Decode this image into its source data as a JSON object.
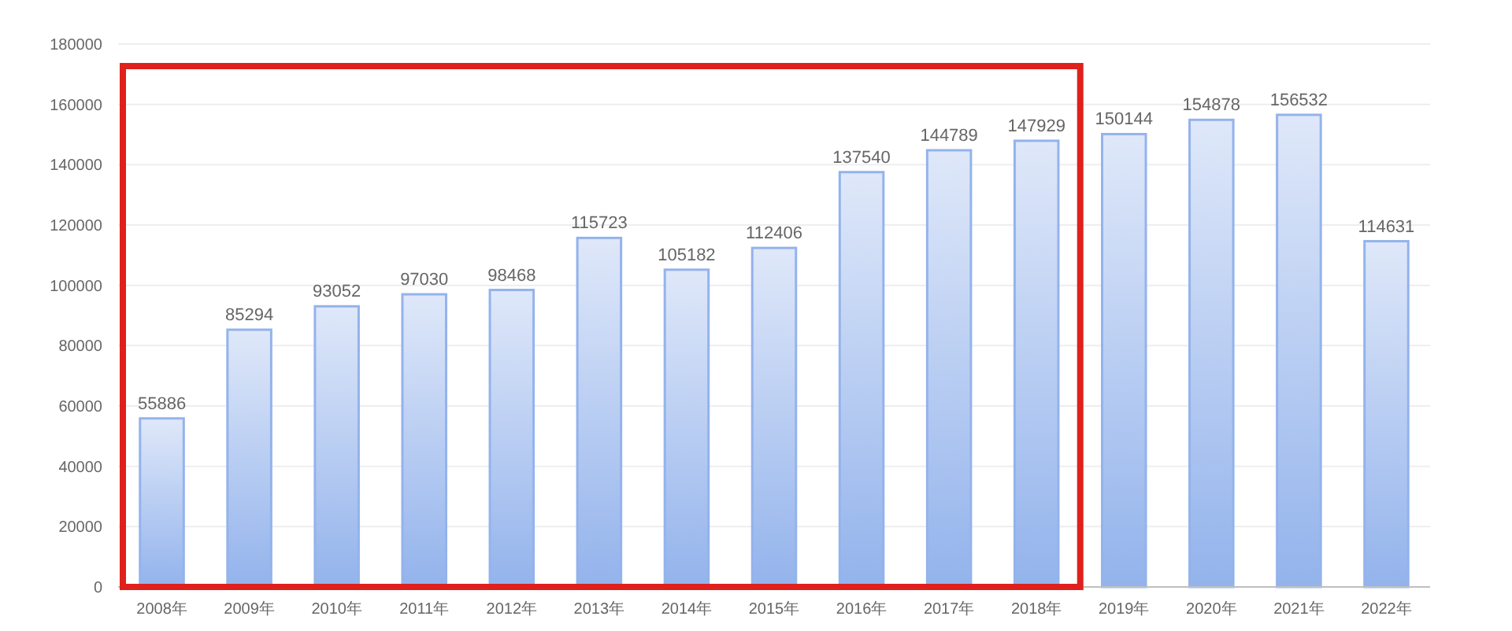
{
  "chart_data": {
    "type": "bar",
    "categories": [
      "2008年",
      "2009年",
      "2010年",
      "2011年",
      "2012年",
      "2013年",
      "2014年",
      "2015年",
      "2016年",
      "2017年",
      "2018年",
      "2019年",
      "2020年",
      "2021年",
      "2022年"
    ],
    "values": [
      55886,
      85294,
      93052,
      97030,
      98468,
      115723,
      105182,
      112406,
      137540,
      144789,
      147929,
      150144,
      154878,
      156532,
      114631
    ],
    "color": "#93b3ec",
    "ylim": [
      0,
      180000
    ],
    "yticks": [
      0,
      20000,
      40000,
      60000,
      80000,
      100000,
      120000,
      140000,
      160000,
      180000
    ],
    "grid": "y",
    "data_labels": true
  }
}
